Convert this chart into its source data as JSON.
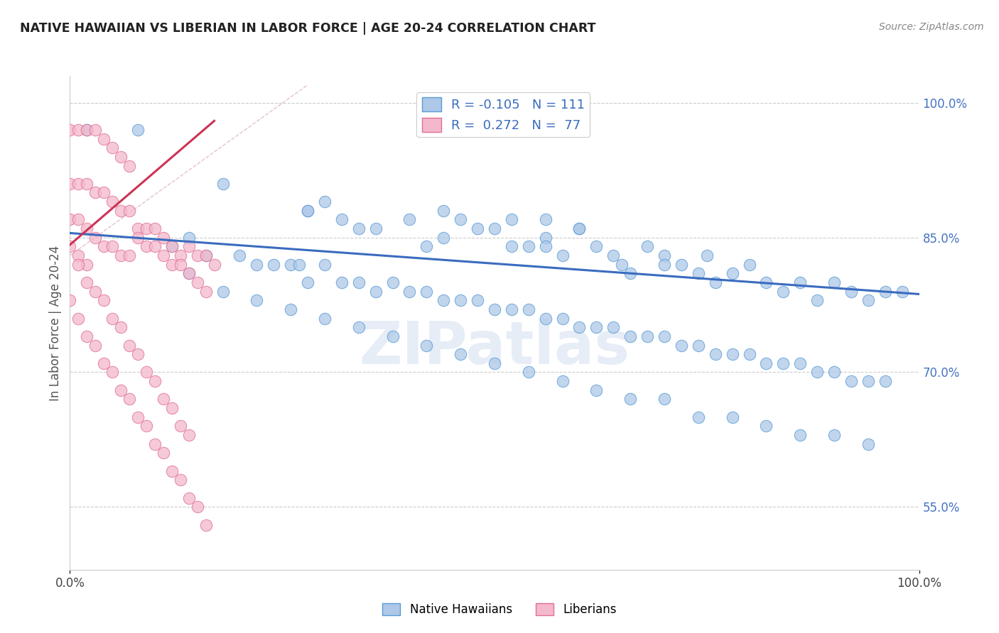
{
  "title": "NATIVE HAWAIIAN VS LIBERIAN IN LABOR FORCE | AGE 20-24 CORRELATION CHART",
  "source": "Source: ZipAtlas.com",
  "ylabel": "In Labor Force | Age 20-24",
  "xlim": [
    0.0,
    1.0
  ],
  "ylim": [
    0.48,
    1.03
  ],
  "y_ticks_right": [
    0.55,
    0.7,
    0.85,
    1.0
  ],
  "y_tick_labels_right": [
    "55.0%",
    "70.0%",
    "85.0%",
    "100.0%"
  ],
  "blue_scatter_color": "#adc8e8",
  "blue_edge_color": "#5b9bd5",
  "pink_scatter_color": "#f4b8cc",
  "pink_edge_color": "#e07090",
  "trend_blue_color": "#3a6bbf",
  "trend_pink_color": "#cc3355",
  "diagonal_color": "#e8b0b8",
  "watermark": "ZIPatlas",
  "legend_label_blue": "R = -0.105   N = 111",
  "legend_label_pink": "R =  0.272   N =  77",
  "blue_x": [
    0.02,
    0.08,
    0.18,
    0.28,
    0.28,
    0.3,
    0.32,
    0.34,
    0.36,
    0.4,
    0.42,
    0.44,
    0.44,
    0.46,
    0.48,
    0.5,
    0.52,
    0.52,
    0.54,
    0.56,
    0.56,
    0.56,
    0.58,
    0.6,
    0.6,
    0.62,
    0.64,
    0.65,
    0.66,
    0.68,
    0.7,
    0.7,
    0.72,
    0.74,
    0.75,
    0.76,
    0.78,
    0.8,
    0.82,
    0.84,
    0.86,
    0.88,
    0.9,
    0.92,
    0.94,
    0.96,
    0.98,
    0.12,
    0.14,
    0.16,
    0.2,
    0.22,
    0.24,
    0.26,
    0.27,
    0.28,
    0.3,
    0.32,
    0.34,
    0.36,
    0.38,
    0.4,
    0.42,
    0.44,
    0.46,
    0.48,
    0.5,
    0.52,
    0.54,
    0.56,
    0.58,
    0.6,
    0.62,
    0.64,
    0.66,
    0.68,
    0.7,
    0.72,
    0.74,
    0.76,
    0.78,
    0.8,
    0.82,
    0.84,
    0.86,
    0.88,
    0.9,
    0.92,
    0.94,
    0.96,
    0.14,
    0.18,
    0.22,
    0.26,
    0.3,
    0.34,
    0.38,
    0.42,
    0.46,
    0.5,
    0.54,
    0.58,
    0.62,
    0.66,
    0.7,
    0.74,
    0.78,
    0.82,
    0.86,
    0.9,
    0.94
  ],
  "blue_y": [
    0.97,
    0.97,
    0.91,
    0.88,
    0.88,
    0.89,
    0.87,
    0.86,
    0.86,
    0.87,
    0.84,
    0.88,
    0.85,
    0.87,
    0.86,
    0.86,
    0.84,
    0.87,
    0.84,
    0.87,
    0.85,
    0.84,
    0.83,
    0.86,
    0.86,
    0.84,
    0.83,
    0.82,
    0.81,
    0.84,
    0.83,
    0.82,
    0.82,
    0.81,
    0.83,
    0.8,
    0.81,
    0.82,
    0.8,
    0.79,
    0.8,
    0.78,
    0.8,
    0.79,
    0.78,
    0.79,
    0.79,
    0.84,
    0.85,
    0.83,
    0.83,
    0.82,
    0.82,
    0.82,
    0.82,
    0.8,
    0.82,
    0.8,
    0.8,
    0.79,
    0.8,
    0.79,
    0.79,
    0.78,
    0.78,
    0.78,
    0.77,
    0.77,
    0.77,
    0.76,
    0.76,
    0.75,
    0.75,
    0.75,
    0.74,
    0.74,
    0.74,
    0.73,
    0.73,
    0.72,
    0.72,
    0.72,
    0.71,
    0.71,
    0.71,
    0.7,
    0.7,
    0.69,
    0.69,
    0.69,
    0.81,
    0.79,
    0.78,
    0.77,
    0.76,
    0.75,
    0.74,
    0.73,
    0.72,
    0.71,
    0.7,
    0.69,
    0.68,
    0.67,
    0.67,
    0.65,
    0.65,
    0.64,
    0.63,
    0.63,
    0.62
  ],
  "pink_x": [
    0.0,
    0.0,
    0.0,
    0.01,
    0.01,
    0.01,
    0.01,
    0.02,
    0.02,
    0.02,
    0.02,
    0.03,
    0.03,
    0.03,
    0.04,
    0.04,
    0.04,
    0.05,
    0.05,
    0.05,
    0.06,
    0.06,
    0.06,
    0.07,
    0.07,
    0.07,
    0.08,
    0.08,
    0.09,
    0.09,
    0.1,
    0.1,
    0.11,
    0.11,
    0.12,
    0.12,
    0.13,
    0.13,
    0.14,
    0.14,
    0.15,
    0.15,
    0.16,
    0.16,
    0.17,
    0.0,
    0.01,
    0.02,
    0.03,
    0.04,
    0.05,
    0.06,
    0.07,
    0.08,
    0.09,
    0.1,
    0.11,
    0.12,
    0.13,
    0.14,
    0.0,
    0.01,
    0.02,
    0.03,
    0.04,
    0.05,
    0.06,
    0.07,
    0.08,
    0.09,
    0.1,
    0.11,
    0.12,
    0.13,
    0.14,
    0.15,
    0.16
  ],
  "pink_y": [
    0.97,
    0.91,
    0.87,
    0.97,
    0.91,
    0.87,
    0.83,
    0.97,
    0.91,
    0.86,
    0.82,
    0.97,
    0.9,
    0.85,
    0.96,
    0.9,
    0.84,
    0.95,
    0.89,
    0.84,
    0.94,
    0.88,
    0.83,
    0.93,
    0.88,
    0.83,
    0.86,
    0.85,
    0.86,
    0.84,
    0.86,
    0.84,
    0.85,
    0.83,
    0.84,
    0.82,
    0.83,
    0.82,
    0.84,
    0.81,
    0.83,
    0.8,
    0.83,
    0.79,
    0.82,
    0.84,
    0.82,
    0.8,
    0.79,
    0.78,
    0.76,
    0.75,
    0.73,
    0.72,
    0.7,
    0.69,
    0.67,
    0.66,
    0.64,
    0.63,
    0.78,
    0.76,
    0.74,
    0.73,
    0.71,
    0.7,
    0.68,
    0.67,
    0.65,
    0.64,
    0.62,
    0.61,
    0.59,
    0.58,
    0.56,
    0.55,
    0.53
  ],
  "pink_trend_x_start": 0.0,
  "pink_trend_x_end": 0.17,
  "blue_trend_x_start": 0.0,
  "blue_trend_x_end": 1.0,
  "blue_trend_y_start": 0.855,
  "blue_trend_y_end": 0.787,
  "pink_trend_y_start": 0.842,
  "pink_trend_y_end": 0.98
}
